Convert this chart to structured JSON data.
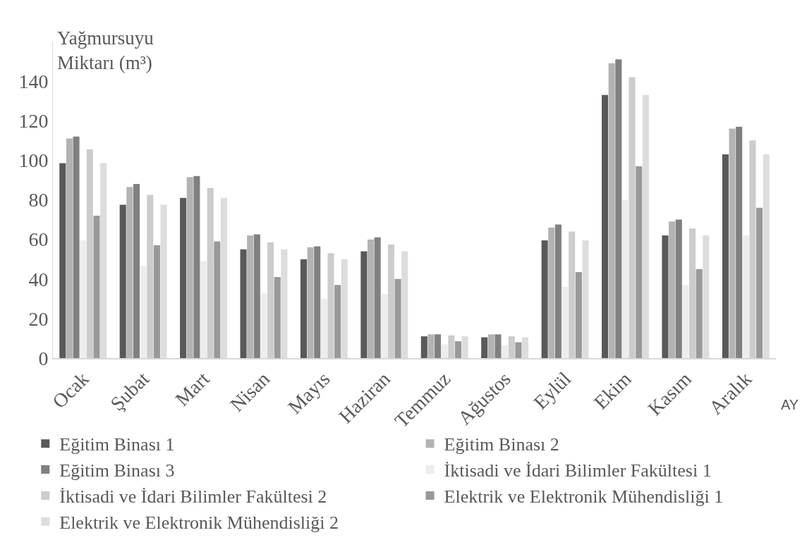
{
  "chart_data": {
    "type": "bar",
    "ylabel": "Yağmursuyu Miktarı (m³)",
    "xlabel": "AY",
    "categories": [
      "Ocak",
      "Şubat",
      "Mart",
      "Nisan",
      "Mayıs",
      "Haziran",
      "Temmuz",
      "Ağustos",
      "Eylül",
      "Ekim",
      "Kasım",
      "Aralık"
    ],
    "series": [
      {
        "name": "Eğitim Binası 1",
        "color": "#595959",
        "values": [
          98.5,
          77.5,
          81,
          55,
          50,
          54,
          11,
          10.5,
          59.5,
          133,
          62,
          103
        ]
      },
      {
        "name": "Eğitim Binası 2",
        "color": "#b3b3b3",
        "values": [
          111,
          86.5,
          91.5,
          62,
          56,
          60,
          12,
          12,
          66,
          149,
          69,
          116
        ]
      },
      {
        "name": "Eğitim Binası 3",
        "color": "#808080",
        "values": [
          112,
          88,
          92,
          62.5,
          56.5,
          61,
          12,
          12,
          67.5,
          151,
          70,
          117
        ]
      },
      {
        "name": "İktisadi ve İdari Bilimler Fakültesi 1",
        "color": "#ededed",
        "values": [
          59.5,
          46.5,
          49,
          33,
          30,
          32.5,
          7,
          6.5,
          36,
          80,
          37,
          62
        ]
      },
      {
        "name": "İktisadi ve İdari Bilimler Fakültesi 2",
        "color": "#cccccc",
        "values": [
          105.5,
          82.5,
          86,
          58.5,
          53,
          57.5,
          11.5,
          11,
          64,
          142,
          65.5,
          110
        ]
      },
      {
        "name": "Elektrik ve Elektronik Mühendisliği 1",
        "color": "#999999",
        "values": [
          72,
          57,
          59,
          41,
          37,
          40,
          8.5,
          8,
          43.5,
          97,
          45,
          76
        ]
      },
      {
        "name": "Elektrik ve Elektronik Mühendisliği 2",
        "color": "#dddddd",
        "values": [
          98.5,
          77.5,
          81,
          55,
          50,
          54,
          11,
          10.5,
          59.5,
          133,
          62,
          103
        ]
      }
    ],
    "ylim": [
      0,
      160
    ],
    "yticks": [
      0,
      20,
      40,
      60,
      80,
      100,
      120,
      140
    ],
    "legend": "bottom"
  }
}
